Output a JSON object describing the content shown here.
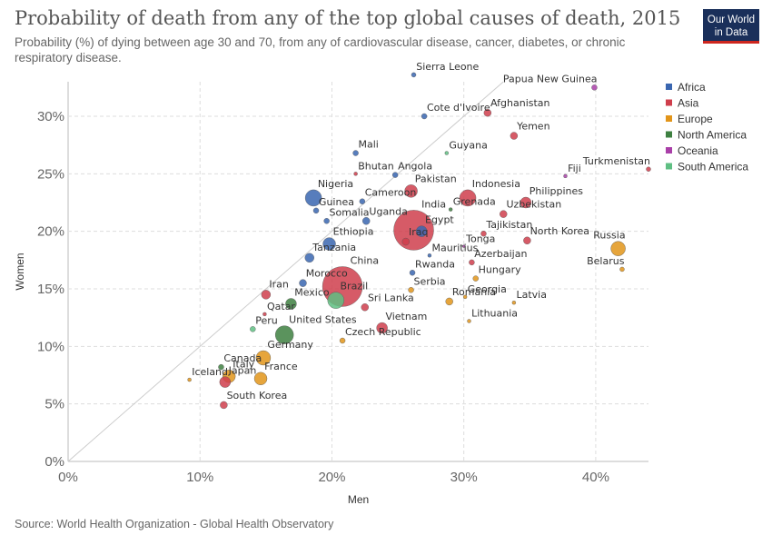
{
  "header": {
    "title": "Probability of death from any of the top global causes of death, 2015",
    "subtitle": "Probability (%) of dying between age 30 and 70, from any of cardiovascular disease, cancer, diabetes, or chronic respiratory disease.",
    "logo_line1": "Our World",
    "logo_line2": "in Data"
  },
  "footer": {
    "source": "Source: World Health Organization - Global Health Observatory"
  },
  "chart_data": {
    "type": "scatter",
    "xlabel": "Men",
    "ylabel": "Women",
    "xlim": [
      0,
      44
    ],
    "ylim": [
      0,
      33
    ],
    "xticks": [
      0,
      10,
      20,
      30,
      40
    ],
    "yticks": [
      0,
      5,
      10,
      15,
      20,
      25,
      30
    ],
    "tick_format": "%",
    "grid": true,
    "legend_position": "right",
    "reference_line": "y = x",
    "series": [
      {
        "name": "Africa",
        "color": "#3a66b0"
      },
      {
        "name": "Asia",
        "color": "#cf3e4c"
      },
      {
        "name": "Europe",
        "color": "#e2951a"
      },
      {
        "name": "North America",
        "color": "#3e8041"
      },
      {
        "name": "Oceania",
        "color": "#a93fa8"
      },
      {
        "name": "South America",
        "color": "#5fbf83"
      }
    ],
    "points": [
      {
        "label": "China",
        "region": "Asia",
        "x": 20.8,
        "y": 15.2,
        "size": 22
      },
      {
        "label": "India",
        "region": "Asia",
        "x": 26.2,
        "y": 20.1,
        "size": 22
      },
      {
        "label": "Indonesia",
        "region": "Asia",
        "x": 30.3,
        "y": 22.9,
        "size": 9
      },
      {
        "label": "Pakistan",
        "region": "Asia",
        "x": 26.0,
        "y": 23.5,
        "size": 7
      },
      {
        "label": "Afghanistan",
        "region": "Asia",
        "x": 31.8,
        "y": 30.3,
        "size": 4
      },
      {
        "label": "Yemen",
        "region": "Asia",
        "x": 33.8,
        "y": 28.3,
        "size": 4
      },
      {
        "label": "Turkmenistan",
        "region": "Asia",
        "x": 44.0,
        "y": 25.4,
        "size": 2.5
      },
      {
        "label": "Philippines",
        "region": "Asia",
        "x": 34.7,
        "y": 22.5,
        "size": 6
      },
      {
        "label": "Uzbekistan",
        "region": "Asia",
        "x": 33.0,
        "y": 21.5,
        "size": 4
      },
      {
        "label": "Tajikistan",
        "region": "Asia",
        "x": 31.5,
        "y": 19.8,
        "size": 3
      },
      {
        "label": "North Korea",
        "region": "Asia",
        "x": 34.8,
        "y": 19.2,
        "size": 4
      },
      {
        "label": "Iraq",
        "region": "Asia",
        "x": 25.6,
        "y": 19.1,
        "size": 4
      },
      {
        "label": "Egypt",
        "region": "Africa",
        "x": 26.8,
        "y": 20.0,
        "size": 6
      },
      {
        "label": "Iran",
        "region": "Asia",
        "x": 15.0,
        "y": 14.5,
        "size": 5
      },
      {
        "label": "Qatar",
        "region": "Asia",
        "x": 14.9,
        "y": 12.8,
        "size": 2
      },
      {
        "label": "Sri Lanka",
        "region": "Asia",
        "x": 22.5,
        "y": 13.4,
        "size": 4
      },
      {
        "label": "Vietnam",
        "region": "Asia",
        "x": 23.8,
        "y": 11.6,
        "size": 6
      },
      {
        "label": "Japan",
        "region": "Asia",
        "x": 11.9,
        "y": 6.9,
        "size": 6
      },
      {
        "label": "South Korea",
        "region": "Asia",
        "x": 11.8,
        "y": 4.9,
        "size": 4
      },
      {
        "label": "Bhutan",
        "region": "Asia",
        "x": 21.8,
        "y": 25.0,
        "size": 2
      },
      {
        "label": "Sierra Leone",
        "region": "Africa",
        "x": 26.2,
        "y": 33.6,
        "size": 2.5
      },
      {
        "label": "Cote d'Ivoire",
        "region": "Africa",
        "x": 27.0,
        "y": 30.0,
        "size": 3
      },
      {
        "label": "Mali",
        "region": "Africa",
        "x": 21.8,
        "y": 26.8,
        "size": 3
      },
      {
        "label": "Angola",
        "region": "Africa",
        "x": 24.8,
        "y": 24.9,
        "size": 3
      },
      {
        "label": "Nigeria",
        "region": "Africa",
        "x": 18.6,
        "y": 22.9,
        "size": 9
      },
      {
        "label": "Cameroon",
        "region": "Africa",
        "x": 22.3,
        "y": 22.6,
        "size": 3
      },
      {
        "label": "Guinea",
        "region": "Africa",
        "x": 18.8,
        "y": 21.8,
        "size": 3
      },
      {
        "label": "Somalia",
        "region": "Africa",
        "x": 19.6,
        "y": 20.9,
        "size": 3
      },
      {
        "label": "Uganda",
        "region": "Africa",
        "x": 22.6,
        "y": 20.9,
        "size": 4
      },
      {
        "label": "Ethiopia",
        "region": "Africa",
        "x": 19.8,
        "y": 18.9,
        "size": 7
      },
      {
        "label": "Tanzania",
        "region": "Africa",
        "x": 18.3,
        "y": 17.7,
        "size": 5
      },
      {
        "label": "Morocco",
        "region": "Africa",
        "x": 17.8,
        "y": 15.5,
        "size": 4
      },
      {
        "label": "Mauritius",
        "region": "Africa",
        "x": 27.4,
        "y": 17.9,
        "size": 2
      },
      {
        "label": "Grenada",
        "region": "North America",
        "x": 29.0,
        "y": 21.9,
        "size": 2
      },
      {
        "label": "Guyana",
        "region": "South America",
        "x": 28.7,
        "y": 26.8,
        "size": 2
      },
      {
        "label": "Brazil",
        "region": "South America",
        "x": 20.3,
        "y": 14.0,
        "size": 9
      },
      {
        "label": "Peru",
        "region": "South America",
        "x": 14.0,
        "y": 11.5,
        "size": 3
      },
      {
        "label": "Mexico",
        "region": "North America",
        "x": 16.9,
        "y": 13.7,
        "size": 6
      },
      {
        "label": "United States",
        "region": "North America",
        "x": 16.4,
        "y": 11.0,
        "size": 10
      },
      {
        "label": "Canada",
        "region": "North America",
        "x": 11.6,
        "y": 8.2,
        "size": 3
      },
      {
        "label": "Russia",
        "region": "Europe",
        "x": 41.7,
        "y": 18.5,
        "size": 8
      },
      {
        "label": "Belarus",
        "region": "Europe",
        "x": 42.0,
        "y": 16.7,
        "size": 2.5
      },
      {
        "label": "Latvia",
        "region": "Europe",
        "x": 33.8,
        "y": 13.8,
        "size": 2
      },
      {
        "label": "Lithuania",
        "region": "Europe",
        "x": 30.4,
        "y": 12.2,
        "size": 2
      },
      {
        "label": "Hungary",
        "region": "Europe",
        "x": 30.9,
        "y": 15.9,
        "size": 3
      },
      {
        "label": "Georgia",
        "region": "Europe",
        "x": 30.1,
        "y": 14.3,
        "size": 2
      },
      {
        "label": "Azerbaijan",
        "region": "Asia",
        "x": 30.6,
        "y": 17.3,
        "size": 3
      },
      {
        "label": "Tonga",
        "region": "Oceania",
        "x": 30.0,
        "y": 18.7,
        "size": 1.5
      },
      {
        "label": "Romania",
        "region": "Europe",
        "x": 28.9,
        "y": 13.9,
        "size": 4
      },
      {
        "label": "Serbia",
        "region": "Europe",
        "x": 26.0,
        "y": 14.9,
        "size": 3
      },
      {
        "label": "Rwanda",
        "region": "Africa",
        "x": 26.1,
        "y": 16.4,
        "size": 3
      },
      {
        "label": "Czech Republic",
        "region": "Europe",
        "x": 20.8,
        "y": 10.5,
        "size": 3
      },
      {
        "label": "Germany",
        "region": "Europe",
        "x": 14.8,
        "y": 9.0,
        "size": 8
      },
      {
        "label": "France",
        "region": "Europe",
        "x": 14.6,
        "y": 7.2,
        "size": 7
      },
      {
        "label": "Italy",
        "region": "Europe",
        "x": 12.2,
        "y": 7.4,
        "size": 7
      },
      {
        "label": "Iceland",
        "region": "Europe",
        "x": 9.2,
        "y": 7.1,
        "size": 2
      },
      {
        "label": "Papua New Guinea",
        "region": "Oceania",
        "x": 39.9,
        "y": 32.5,
        "size": 3
      },
      {
        "label": "Fiji",
        "region": "Oceania",
        "x": 37.7,
        "y": 24.8,
        "size": 2
      }
    ]
  }
}
